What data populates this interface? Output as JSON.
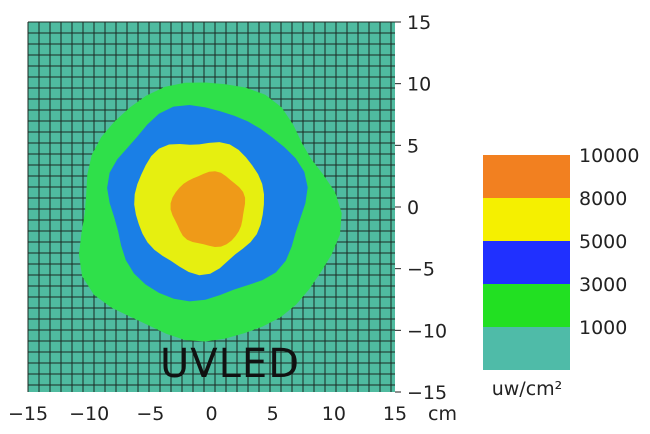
{
  "chart_data": {
    "type": "heatmap",
    "title": "",
    "xlabel": "",
    "ylabel": "",
    "x_unit": "cm",
    "xlim": [
      -15,
      15
    ],
    "ylim": [
      -15,
      15
    ],
    "x_ticks": [
      "−15",
      "−10",
      "−5",
      "0",
      "5",
      "10",
      "15"
    ],
    "x_tick_values": [
      -15,
      -10,
      -5,
      0,
      5,
      10,
      15
    ],
    "y_ticks": [
      "15",
      "10",
      "5",
      "0",
      "−5",
      "−10",
      "−15"
    ],
    "y_tick_values": [
      15,
      10,
      5,
      0,
      -5,
      -10,
      -15
    ],
    "grid": true,
    "annotation": "UVLED",
    "colorbar": {
      "unit": "uw/cm²",
      "labels": [
        "10000",
        "8000",
        "5000",
        "3000",
        "1000"
      ],
      "bands": [
        {
          "from": 8000,
          "to": 10000,
          "color": "#f28020"
        },
        {
          "from": 5000,
          "to": 8000,
          "color": "#f5f000"
        },
        {
          "from": 3000,
          "to": 5000,
          "color": "#2030ff"
        },
        {
          "from": 1000,
          "to": 3000,
          "color": "#22e022"
        },
        {
          "from": 0,
          "to": 1000,
          "color": "#4fbba8"
        }
      ]
    },
    "regions": [
      {
        "level": "1000",
        "color": "#2fe04a",
        "center": [
          -0.5,
          -0.5
        ],
        "radius_x": 10.5,
        "radius_y": 10.5
      },
      {
        "level": "3000",
        "color": "#1a7fe6",
        "center": [
          -0.5,
          0.3
        ],
        "radius_x": 8,
        "radius_y": 7.8
      },
      {
        "level": "5000",
        "color": "#e6ef10",
        "center": [
          -1,
          0.2
        ],
        "radius_x": 5.3,
        "radius_y": 5.3
      },
      {
        "level": "8000",
        "color": "#ef9a18",
        "center": [
          -0.2,
          -0.2
        ],
        "radius_x": 3,
        "radius_y": 3
      }
    ],
    "background_color": "#4fbba0",
    "grid_color": "#1b2a22"
  }
}
